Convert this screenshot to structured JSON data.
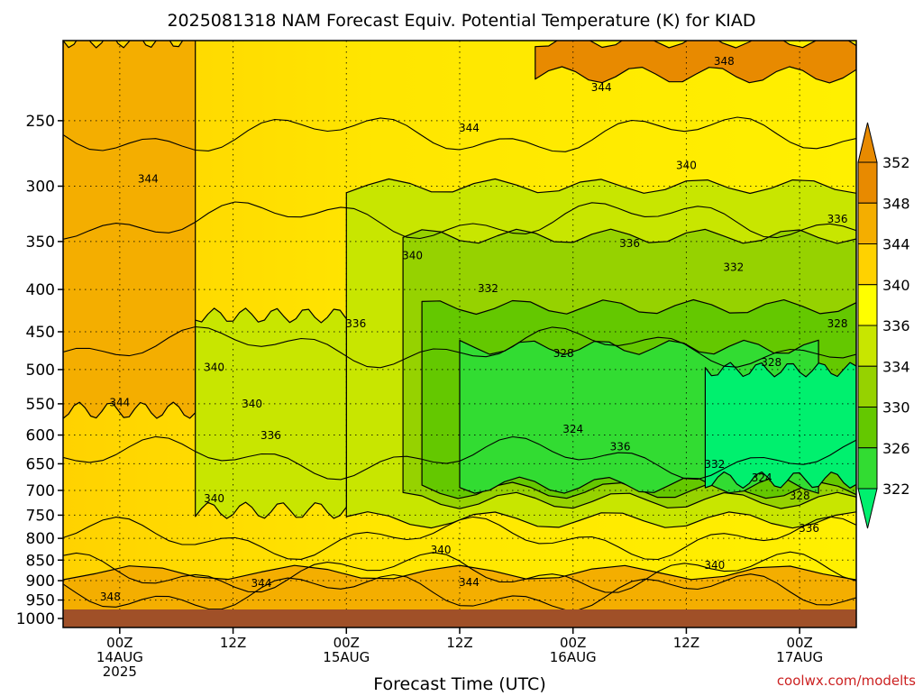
{
  "chart_data": {
    "type": "heatmap",
    "title": "2025081318 NAM Forecast Equiv. Potential Temperature (K) for KIAD",
    "xlabel": "Forecast Time (UTC)",
    "ylabel": "",
    "x_ticks": [
      {
        "hours": 6,
        "lines": [
          "00Z",
          "14AUG",
          "2025"
        ]
      },
      {
        "hours": 18,
        "lines": [
          "12Z"
        ]
      },
      {
        "hours": 30,
        "lines": [
          "00Z",
          "15AUG"
        ]
      },
      {
        "hours": 42,
        "lines": [
          "12Z"
        ]
      },
      {
        "hours": 54,
        "lines": [
          "00Z",
          "16AUG"
        ]
      },
      {
        "hours": 66,
        "lines": [
          "12Z"
        ]
      },
      {
        "hours": 78,
        "lines": [
          "00Z",
          "17AUG"
        ]
      }
    ],
    "xlim": [
      0,
      84
    ],
    "y_ticks": [
      250,
      300,
      350,
      400,
      450,
      500,
      550,
      600,
      650,
      700,
      750,
      800,
      850,
      900,
      950,
      1000
    ],
    "ylim": [
      200,
      1000
    ],
    "y_scale": "log-pressure",
    "colorbar": {
      "labels": [
        352,
        348,
        344,
        340,
        336,
        334,
        330,
        326,
        322
      ],
      "colors": [
        "#e88a00",
        "#f4ae00",
        "#ffd200",
        "#ffff00",
        "#c8e600",
        "#96d200",
        "#64c800",
        "#32dc32",
        "#00f06e"
      ],
      "extend": "both"
    },
    "contour_labels": [
      {
        "text": "348",
        "h": 70,
        "p": 212
      },
      {
        "text": "344",
        "h": 57,
        "p": 228
      },
      {
        "text": "344",
        "h": 43,
        "p": 255
      },
      {
        "text": "340",
        "h": 66,
        "p": 283
      },
      {
        "text": "344",
        "h": 9,
        "p": 294
      },
      {
        "text": "336",
        "h": 82,
        "p": 329
      },
      {
        "text": "340",
        "h": 37,
        "p": 364
      },
      {
        "text": "336",
        "h": 60,
        "p": 352
      },
      {
        "text": "332",
        "h": 71,
        "p": 376
      },
      {
        "text": "332",
        "h": 45,
        "p": 399
      },
      {
        "text": "336",
        "h": 31,
        "p": 440
      },
      {
        "text": "328",
        "h": 82,
        "p": 440
      },
      {
        "text": "328",
        "h": 53,
        "p": 478
      },
      {
        "text": "340",
        "h": 16,
        "p": 497
      },
      {
        "text": "328",
        "h": 75,
        "p": 490
      },
      {
        "text": "344",
        "h": 6,
        "p": 548
      },
      {
        "text": "340",
        "h": 20,
        "p": 550
      },
      {
        "text": "324",
        "h": 54,
        "p": 590
      },
      {
        "text": "336",
        "h": 22,
        "p": 601
      },
      {
        "text": "336",
        "h": 59,
        "p": 620
      },
      {
        "text": "332",
        "h": 69,
        "p": 651
      },
      {
        "text": "324",
        "h": 74,
        "p": 676
      },
      {
        "text": "340",
        "h": 16,
        "p": 716
      },
      {
        "text": "328",
        "h": 78,
        "p": 711
      },
      {
        "text": "336",
        "h": 79,
        "p": 778
      },
      {
        "text": "340",
        "h": 40,
        "p": 826
      },
      {
        "text": "340",
        "h": 69,
        "p": 862
      },
      {
        "text": "344",
        "h": 21,
        "p": 907
      },
      {
        "text": "344",
        "h": 43,
        "p": 905
      },
      {
        "text": "348",
        "h": 5,
        "p": 942
      }
    ],
    "fill_regions": [
      {
        "level": "344-348",
        "hours": [
          0,
          14
        ],
        "p": [
          200,
          560
        ]
      },
      {
        "level": "348-352",
        "hours": [
          50,
          84
        ],
        "p": [
          200,
          220
        ]
      },
      {
        "level": "336-340",
        "hours": [
          30,
          84
        ],
        "p": [
          300,
          760
        ]
      },
      {
        "level": "332-336",
        "hours": [
          36,
          84
        ],
        "p": [
          345,
          720
        ]
      },
      {
        "level": "330-332",
        "hours": [
          38,
          84
        ],
        "p": [
          420,
          700
        ]
      },
      {
        "level": "326-330",
        "hours": [
          42,
          80
        ],
        "p": [
          470,
          690
        ]
      },
      {
        "level": "322-326",
        "hours": [
          68,
          84
        ],
        "p": [
          500,
          680
        ]
      },
      {
        "level": "336-340",
        "hours": [
          14,
          30
        ],
        "p": [
          430,
          740
        ]
      },
      {
        "level": "344-348",
        "hours": [
          0,
          84
        ],
        "p": [
          880,
          1000
        ]
      }
    ]
  },
  "watermark": "coolwx.com/modelts",
  "ground_color": "#a05028"
}
